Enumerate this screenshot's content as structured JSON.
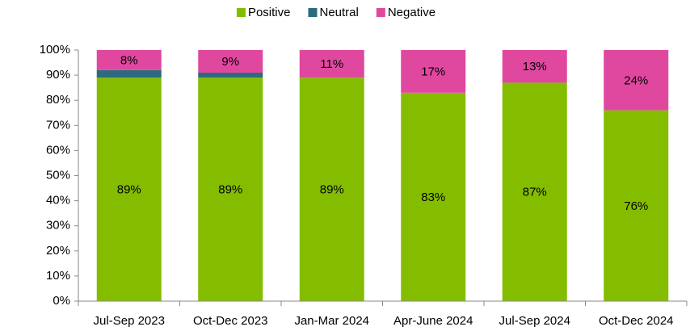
{
  "chart_data": {
    "type": "stacked_bar",
    "categories": [
      "Jul-Sep 2023",
      "Oct-Dec 2023",
      "Jan-Mar 2024",
      "Apr-June 2024",
      "Jul-Sep 2024",
      "Oct-Dec 2024"
    ],
    "series": [
      {
        "name": "Positive",
        "color": "#84bd00",
        "values": [
          89,
          89,
          89,
          83,
          87,
          76
        ],
        "value_labels": [
          "89%",
          "89%",
          "89%",
          "83%",
          "87%",
          "76%"
        ]
      },
      {
        "name": "Neutral",
        "color": "#2c6a7e",
        "values": [
          3,
          2,
          0,
          0,
          0,
          0
        ]
      },
      {
        "name": "Negative",
        "color": "#e0489f",
        "values": [
          8,
          9,
          11,
          17,
          13,
          24
        ],
        "value_labels": [
          "8%",
          "9%",
          "11%",
          "17%",
          "13%",
          "24%"
        ]
      }
    ],
    "ylim": [
      0,
      100
    ],
    "yticks": [
      {
        "value": 0,
        "label": "0%"
      },
      {
        "value": 10,
        "label": "10%"
      },
      {
        "value": 20,
        "label": "20%"
      },
      {
        "value": 30,
        "label": "30%"
      },
      {
        "value": 40,
        "label": "40%"
      },
      {
        "value": 50,
        "label": "50%"
      },
      {
        "value": 60,
        "label": "60%"
      },
      {
        "value": 70,
        "label": "70%"
      },
      {
        "value": 80,
        "label": "80%"
      },
      {
        "value": 90,
        "label": "90%"
      },
      {
        "value": 100,
        "label": "100%"
      }
    ],
    "legend": "top",
    "grid": false
  }
}
